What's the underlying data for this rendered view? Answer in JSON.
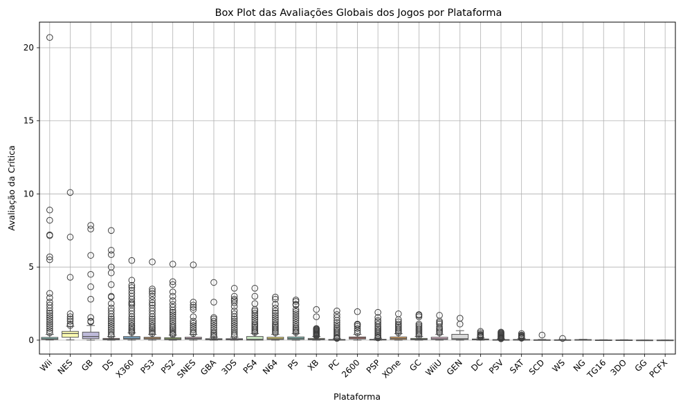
{
  "chart_data": {
    "type": "box",
    "title": "Box Plot das Avaliações Globais dos Jogos por Plataforma",
    "xlabel": "Plataforma",
    "ylabel": "Avaliação da Crítica",
    "ylim": [
      -0.95,
      21.75
    ],
    "yticks": [
      0,
      5,
      10,
      15,
      20
    ],
    "grid": true,
    "categories": [
      "Wii",
      "NES",
      "GB",
      "DS",
      "X360",
      "PS3",
      "PS2",
      "SNES",
      "GBA",
      "3DS",
      "PS4",
      "N64",
      "PS",
      "XB",
      "PC",
      "2600",
      "PSP",
      "XOne",
      "GC",
      "WiiU",
      "GEN",
      "DC",
      "PSV",
      "SAT",
      "SCD",
      "WS",
      "NG",
      "TG16",
      "3DO",
      "GG",
      "PCFX"
    ],
    "colors": [
      "#8dd3c7",
      "#ffffb3",
      "#bebada",
      "#fb8072",
      "#80b1d3",
      "#fdb462",
      "#b3de69",
      "#fccde5",
      "#d9d9d9",
      "#bc80bd",
      "#ccebc5",
      "#ffed6f",
      "#8dd3c7",
      "#ffffb3",
      "#bebada",
      "#fb8072",
      "#80b1d3",
      "#fdb462",
      "#b3de69",
      "#fccde5",
      "#d9d9d9",
      "#bc80bd",
      "#ccebc5",
      "#ffed6f",
      "#8dd3c7",
      "#ffffb3",
      "#bebada",
      "#fb8072",
      "#80b1d3",
      "#fdb462",
      "#b3de69"
    ],
    "boxes": [
      {
        "q1": 0.05,
        "median": 0.09,
        "q3": 0.19,
        "wlo": 0.01,
        "whi": 0.4,
        "outliers": [
          20.7,
          8.9,
          8.2,
          7.2,
          7.15,
          5.7,
          5.5,
          3.2,
          2.9,
          2.6,
          2.4,
          2.2,
          2.0,
          1.85,
          1.7,
          1.55,
          1.4,
          1.25,
          1.1,
          0.95,
          0.8,
          0.65,
          0.5
        ]
      },
      {
        "q1": 0.2,
        "median": 0.45,
        "q3": 0.6,
        "wlo": 0.02,
        "whi": 0.95,
        "outliers": [
          10.1,
          7.05,
          4.3,
          1.8,
          1.6,
          1.45,
          1.3,
          1.1,
          1.0
        ]
      },
      {
        "q1": 0.1,
        "median": 0.25,
        "q3": 0.55,
        "wlo": 0.0,
        "whi": 1.0,
        "outliers": [
          7.85,
          7.6,
          5.8,
          4.5,
          3.65,
          2.8,
          1.55,
          1.3,
          1.25
        ]
      },
      {
        "q1": 0.03,
        "median": 0.07,
        "q3": 0.12,
        "wlo": 0.0,
        "whi": 0.25,
        "outliers": [
          7.5,
          6.15,
          5.85,
          5.0,
          4.6,
          3.8,
          3.0,
          2.95,
          2.5,
          2.2,
          2.0,
          1.8,
          1.6,
          1.45,
          1.3,
          1.15,
          1.0,
          0.85,
          0.7,
          0.55,
          0.4,
          0.3
        ]
      },
      {
        "q1": 0.07,
        "median": 0.13,
        "q3": 0.25,
        "wlo": 0.0,
        "whi": 0.5,
        "outliers": [
          5.45,
          4.1,
          3.75,
          3.6,
          3.4,
          3.2,
          3.0,
          2.8,
          2.6,
          2.5,
          2.4,
          2.2,
          2.0,
          1.8,
          1.6,
          1.45,
          1.3,
          1.15,
          1.0,
          0.9,
          0.8,
          0.7,
          0.6,
          0.52
        ]
      },
      {
        "q1": 0.07,
        "median": 0.13,
        "q3": 0.2,
        "wlo": 0.0,
        "whi": 0.4,
        "outliers": [
          5.35,
          3.5,
          3.35,
          3.2,
          3.0,
          2.75,
          2.55,
          2.4,
          2.2,
          2.0,
          1.8,
          1.6,
          1.45,
          1.3,
          1.15,
          1.0,
          0.88,
          0.77,
          0.66,
          0.55,
          0.45
        ]
      },
      {
        "q1": 0.04,
        "median": 0.09,
        "q3": 0.17,
        "wlo": 0.0,
        "whi": 0.35,
        "outliers": [
          5.2,
          4.0,
          3.8,
          3.3,
          3.0,
          2.7,
          2.45,
          2.25,
          2.05,
          1.9,
          1.75,
          1.6,
          1.45,
          1.3,
          1.15,
          1.0,
          0.88,
          0.77,
          0.66,
          0.55,
          0.45,
          0.38
        ]
      },
      {
        "q1": 0.07,
        "median": 0.12,
        "q3": 0.2,
        "wlo": 0.0,
        "whi": 0.4,
        "outliers": [
          5.15,
          2.6,
          2.4,
          2.25,
          2.1,
          1.6,
          1.3,
          1.15,
          1.0,
          0.85,
          0.7,
          0.55,
          0.45
        ]
      },
      {
        "q1": 0.03,
        "median": 0.06,
        "q3": 0.1,
        "wlo": 0.0,
        "whi": 0.2,
        "outliers": [
          3.95,
          2.6,
          1.55,
          1.45,
          1.3,
          1.15,
          1.0,
          0.85,
          0.7,
          0.55,
          0.45,
          0.35,
          0.25
        ]
      },
      {
        "q1": 0.02,
        "median": 0.05,
        "q3": 0.1,
        "wlo": 0.0,
        "whi": 0.2,
        "outliers": [
          3.55,
          3.0,
          2.8,
          2.7,
          2.55,
          2.3,
          2.0,
          1.8,
          1.6,
          1.45,
          1.3,
          1.15,
          1.0,
          0.85,
          0.7,
          0.55,
          0.42,
          0.3
        ]
      },
      {
        "q1": 0.0,
        "median": 0.06,
        "q3": 0.25,
        "wlo": 0.0,
        "whi": 0.45,
        "outliers": [
          3.55,
          3.0,
          2.5,
          2.1,
          2.0,
          1.85,
          1.7,
          1.55,
          1.4,
          1.25,
          1.1,
          1.0,
          0.9,
          0.8,
          0.7,
          0.6,
          0.52
        ]
      },
      {
        "q1": 0.05,
        "median": 0.1,
        "q3": 0.2,
        "wlo": 0.0,
        "whi": 0.4,
        "outliers": [
          2.95,
          2.8,
          2.45,
          2.2,
          2.0,
          1.85,
          1.7,
          1.55,
          1.4,
          1.25,
          1.1,
          1.0,
          0.9,
          0.8,
          0.7,
          0.6,
          0.5
        ]
      },
      {
        "q1": 0.05,
        "median": 0.12,
        "q3": 0.22,
        "wlo": 0.0,
        "whi": 0.45,
        "outliers": [
          2.75,
          2.65,
          2.45,
          2.4,
          2.1,
          1.95,
          1.8,
          1.65,
          1.5,
          1.35,
          1.2,
          1.05,
          0.9,
          0.8,
          0.7,
          0.6,
          0.52
        ]
      },
      {
        "q1": 0.03,
        "median": 0.06,
        "q3": 0.12,
        "wlo": 0.0,
        "whi": 0.25,
        "outliers": [
          2.1,
          1.6,
          0.8,
          0.75,
          0.7,
          0.65,
          0.6,
          0.55,
          0.5,
          0.45,
          0.4,
          0.35,
          0.3
        ]
      },
      {
        "q1": 0.0,
        "median": 0.02,
        "q3": 0.05,
        "wlo": 0.0,
        "whi": 0.1,
        "outliers": [
          2.0,
          1.75,
          1.55,
          1.35,
          1.2,
          1.05,
          0.9,
          0.8,
          0.7,
          0.6,
          0.5,
          0.4,
          0.3,
          0.2,
          0.15,
          0.12
        ]
      },
      {
        "q1": 0.08,
        "median": 0.15,
        "q3": 0.22,
        "wlo": 0.0,
        "whi": 0.4,
        "outliers": [
          1.95,
          1.1,
          1.05,
          0.95,
          0.8,
          0.65,
          0.5
        ]
      },
      {
        "q1": 0.01,
        "median": 0.03,
        "q3": 0.06,
        "wlo": 0.0,
        "whi": 0.13,
        "outliers": [
          1.9,
          1.55,
          1.35,
          1.25,
          1.1,
          0.95,
          0.85,
          0.75,
          0.65,
          0.55,
          0.45,
          0.35,
          0.28,
          0.2,
          0.15
        ]
      },
      {
        "q1": 0.05,
        "median": 0.12,
        "q3": 0.22,
        "wlo": 0.0,
        "whi": 0.45,
        "outliers": [
          1.8,
          1.4,
          1.25,
          1.1,
          1.0,
          0.9,
          0.8,
          0.7,
          0.6,
          0.5
        ]
      },
      {
        "q1": 0.03,
        "median": 0.06,
        "q3": 0.12,
        "wlo": 0.0,
        "whi": 0.25,
        "outliers": [
          1.75,
          1.7,
          1.6,
          1.1,
          1.0,
          0.9,
          0.8,
          0.7,
          0.6,
          0.5,
          0.4,
          0.3
        ]
      },
      {
        "q1": 0.05,
        "median": 0.1,
        "q3": 0.2,
        "wlo": 0.0,
        "whi": 0.4,
        "outliers": [
          1.7,
          1.3,
          1.2,
          1.1,
          0.9,
          0.8,
          0.7,
          0.6,
          0.5
        ]
      },
      {
        "q1": 0.05,
        "median": 0.1,
        "q3": 0.4,
        "wlo": 0.0,
        "whi": 0.65,
        "outliers": [
          1.5,
          1.1
        ]
      },
      {
        "q1": 0.02,
        "median": 0.05,
        "q3": 0.08,
        "wlo": 0.0,
        "whi": 0.15,
        "outliers": [
          0.6,
          0.5,
          0.4,
          0.35,
          0.3,
          0.25,
          0.2
        ]
      },
      {
        "q1": 0.0,
        "median": 0.02,
        "q3": 0.04,
        "wlo": 0.0,
        "whi": 0.08,
        "outliers": [
          0.55,
          0.5,
          0.45,
          0.4,
          0.35,
          0.3,
          0.25,
          0.2,
          0.16,
          0.12,
          0.1
        ]
      },
      {
        "q1": 0.0,
        "median": 0.03,
        "q3": 0.05,
        "wlo": 0.0,
        "whi": 0.1,
        "outliers": [
          0.45,
          0.35,
          0.3,
          0.25,
          0.2,
          0.16,
          0.13
        ]
      },
      {
        "q1": 0.0,
        "median": 0.01,
        "q3": 0.03,
        "wlo": 0.0,
        "whi": 0.05,
        "outliers": [
          0.35
        ]
      },
      {
        "q1": 0.0,
        "median": 0.01,
        "q3": 0.03,
        "wlo": 0.0,
        "whi": 0.05,
        "outliers": [
          0.12
        ]
      },
      {
        "q1": 0.01,
        "median": 0.02,
        "q3": 0.04,
        "wlo": 0.0,
        "whi": 0.06,
        "outliers": []
      },
      {
        "q1": 0.0,
        "median": 0.01,
        "q3": 0.02,
        "wlo": 0.0,
        "whi": 0.03,
        "outliers": []
      },
      {
        "q1": 0.0,
        "median": 0.01,
        "q3": 0.02,
        "wlo": 0.0,
        "whi": 0.03,
        "outliers": []
      },
      {
        "q1": 0.0,
        "median": 0.0,
        "q3": 0.01,
        "wlo": 0.0,
        "whi": 0.02,
        "outliers": []
      },
      {
        "q1": 0.0,
        "median": 0.0,
        "q3": 0.01,
        "wlo": 0.0,
        "whi": 0.02,
        "outliers": []
      }
    ]
  }
}
